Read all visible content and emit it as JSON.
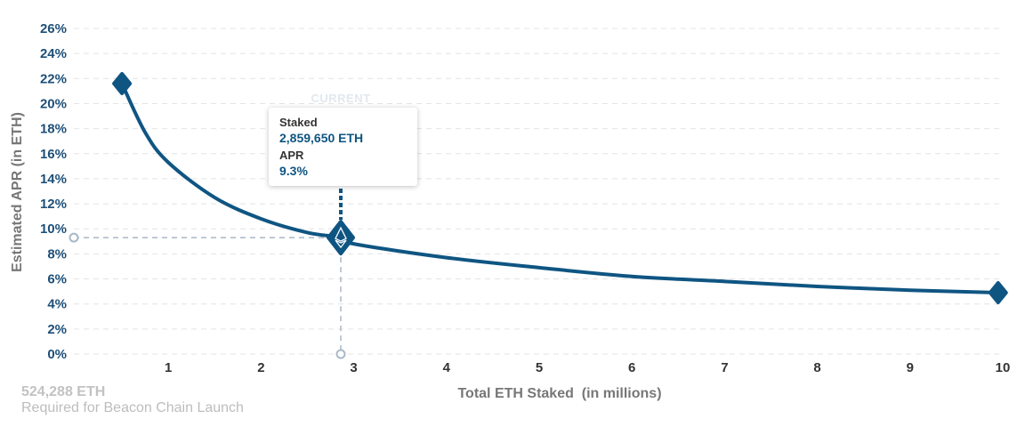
{
  "chart_data": {
    "type": "line",
    "title": "",
    "xlabel": "Total ETH Staked  (in millions)",
    "ylabel": "Estimated APR (in ETH)",
    "x_ticks": [
      1,
      2,
      3,
      4,
      5,
      6,
      7,
      8,
      9,
      10
    ],
    "y_ticks": [
      "0%",
      "2%",
      "4%",
      "6%",
      "8%",
      "10%",
      "12%",
      "14%",
      "16%",
      "18%",
      "20%",
      "22%",
      "24%",
      "26%"
    ],
    "xlim": [
      0,
      10
    ],
    "ylim": [
      0,
      26
    ],
    "grid": true,
    "series": [
      {
        "x": [
          0.5,
          0.75,
          1,
          1.5,
          2,
          2.5,
          2.86,
          3,
          4,
          5,
          6,
          7,
          8,
          9,
          9.95
        ],
        "y": [
          21.6,
          17.7,
          15.3,
          12.5,
          10.8,
          9.7,
          9.3,
          8.8,
          7.7,
          6.9,
          6.2,
          5.8,
          5.4,
          5.1,
          4.9
        ]
      }
    ],
    "current_point": {
      "marker_label": "CURRENT",
      "x": 2.86,
      "y": 9.3,
      "staked_label": "Staked",
      "staked_value": "2,859,650 ETH",
      "apr_label": "APR",
      "apr_value": "9.3%"
    }
  },
  "footnote": {
    "value": "524,288 ETH",
    "label": "Required for Beacon Chain Launch"
  },
  "colors": {
    "curve": "#0f5582",
    "tick_y": "#1d4f78",
    "guide": "#a9b8c6"
  }
}
